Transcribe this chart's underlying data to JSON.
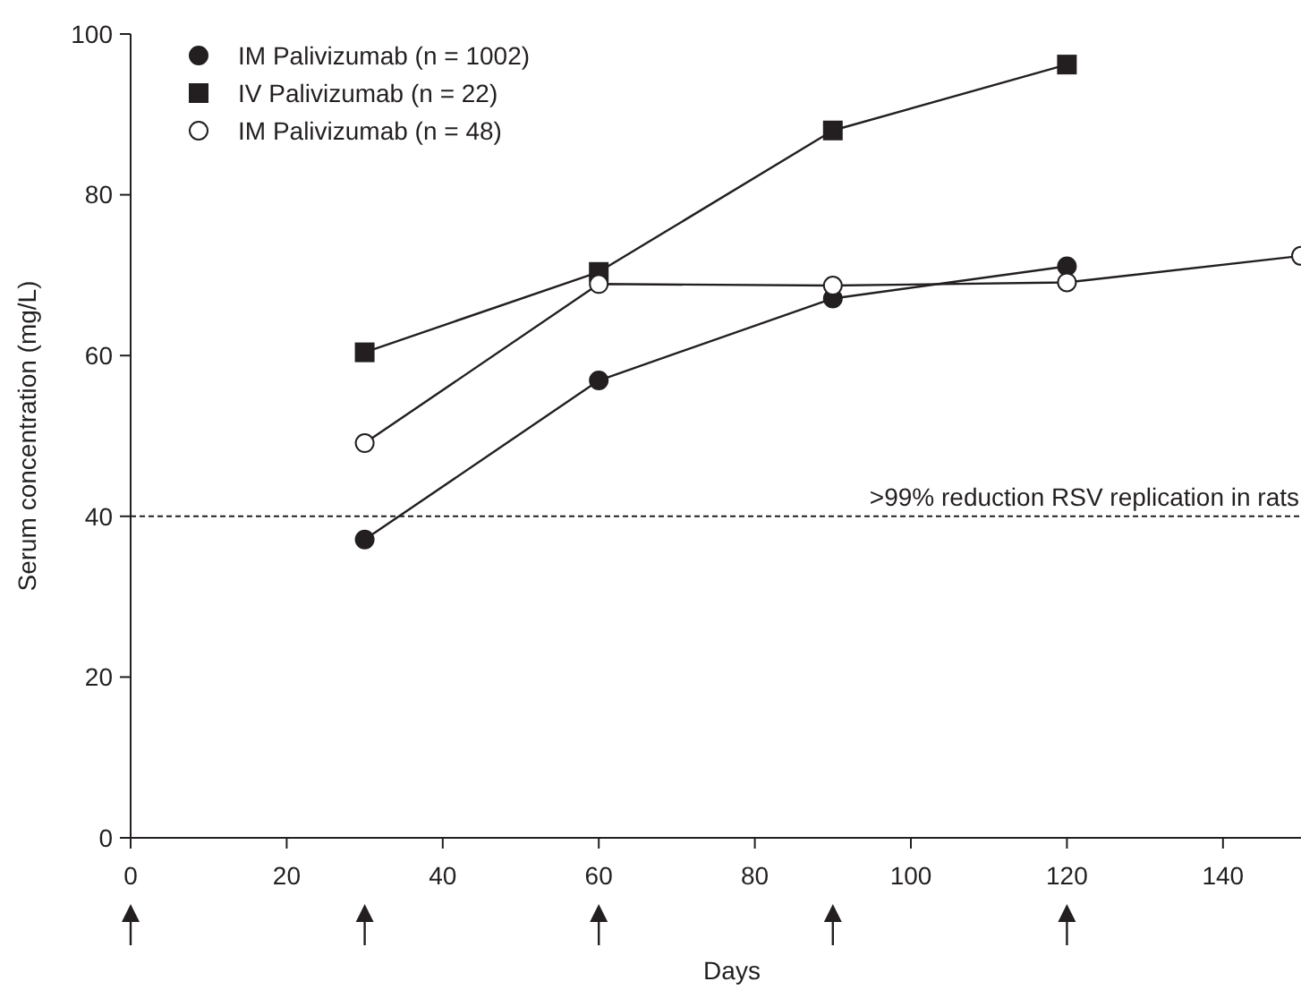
{
  "chart_data": {
    "type": "line",
    "xlabel": "Days",
    "ylabel": "Serum concentration (mg/L)",
    "xlim": [
      0,
      150
    ],
    "xticks": [
      0,
      20,
      40,
      60,
      80,
      100,
      120,
      140
    ],
    "ylim": [
      0,
      100
    ],
    "yticks": [
      0,
      20,
      40,
      60,
      80,
      100
    ],
    "grid": false,
    "legend": "top left",
    "line_style": "solid",
    "series": [
      {
        "name": "IM Palivizumab (n = 1002)",
        "color": "#231f20",
        "marker": "circle",
        "x": [
          30,
          60,
          90,
          120
        ],
        "values": [
          37.1,
          56.9,
          67.1,
          71.1
        ]
      },
      {
        "name": "IV Palivizumab (n = 22)",
        "color": "#231f20",
        "marker": "square",
        "x": [
          30,
          60,
          90,
          120
        ],
        "values": [
          60.4,
          70.4,
          88,
          96.2
        ]
      },
      {
        "name": "IM Palivizumab (n = 48)",
        "color": "#ffffff",
        "marker": "circle",
        "x": [
          30,
          60,
          90,
          120,
          150
        ],
        "values": [
          49.1,
          68.9,
          68.7,
          69.1,
          72.4
        ]
      }
    ],
    "ref_lines": [
      {
        "axis": "y",
        "value": 40,
        "label": ">99% reduction RSV replication in rats",
        "line_style": "dashed",
        "color": "#231f20"
      }
    ]
  }
}
